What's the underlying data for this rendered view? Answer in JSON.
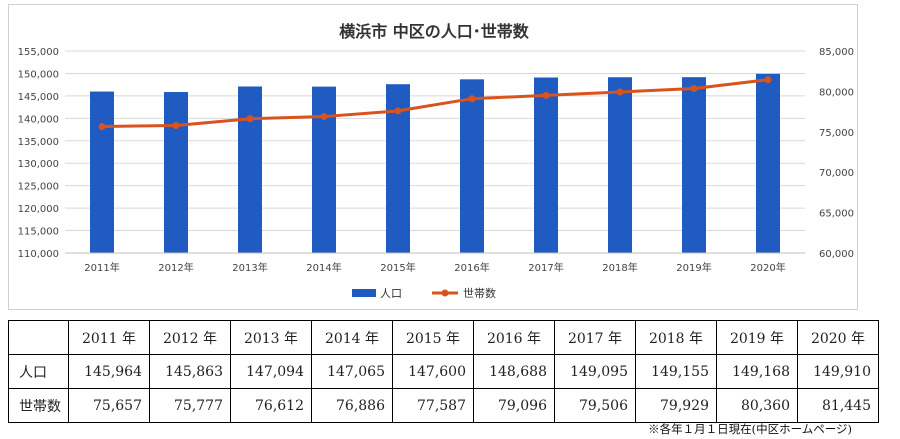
{
  "chart_data": {
    "type": "bar+line",
    "title": "横浜市 中区の人口･世帯数",
    "categories": [
      "2011年",
      "2012年",
      "2013年",
      "2014年",
      "2015年",
      "2016年",
      "2017年",
      "2018年",
      "2019年",
      "2020年"
    ],
    "series": [
      {
        "name": "人口",
        "type": "bar",
        "axis": "left",
        "color": "#1F5BC0",
        "values": [
          145964,
          145863,
          147094,
          147065,
          147600,
          148688,
          149095,
          149155,
          149168,
          149910
        ]
      },
      {
        "name": "世帯数",
        "type": "line",
        "axis": "right",
        "color": "#D9531E",
        "values": [
          75657,
          75777,
          76612,
          76886,
          77587,
          79096,
          79506,
          79929,
          80360,
          81445
        ]
      }
    ],
    "y_left": {
      "min": 110000,
      "max": 155000,
      "step": 5000,
      "ticks": [
        "110,000",
        "115,000",
        "120,000",
        "125,000",
        "130,000",
        "135,000",
        "140,000",
        "145,000",
        "150,000",
        "155,000"
      ]
    },
    "y_right": {
      "min": 60000,
      "max": 85000,
      "step": 5000,
      "ticks": [
        "60,000",
        "65,000",
        "70,000",
        "75,000",
        "80,000",
        "85,000"
      ]
    },
    "grid": true,
    "legend_position": "bottom"
  },
  "table": {
    "headers": [
      "2011 年",
      "2012 年",
      "2013 年",
      "2014 年",
      "2015 年",
      "2016 年",
      "2017 年",
      "2018 年",
      "2019 年",
      "2020 年"
    ],
    "rows": [
      {
        "label": "人口",
        "values": [
          "145,964",
          "145,863",
          "147,094",
          "147,065",
          "147,600",
          "148,688",
          "149,095",
          "149,155",
          "149,168",
          "149,910"
        ]
      },
      {
        "label": "世帯数",
        "values": [
          "75,657",
          "75,777",
          "76,612",
          "76,886",
          "77,587",
          "79,096",
          "79,506",
          "79,929",
          "80,360",
          "81,445"
        ]
      }
    ]
  },
  "note": "※各年１月１日現在(中区ホームページ)"
}
